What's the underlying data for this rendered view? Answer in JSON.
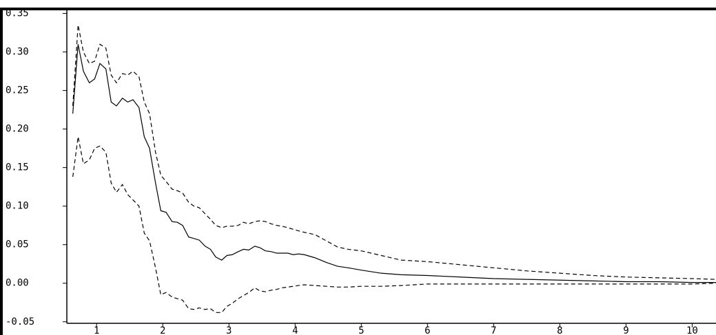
{
  "chart_data": {
    "type": "line",
    "x": [
      0.64,
      0.72,
      0.8,
      0.89,
      0.97,
      1.05,
      1.14,
      1.22,
      1.3,
      1.39,
      1.47,
      1.55,
      1.64,
      1.72,
      1.8,
      1.89,
      1.97,
      2.05,
      2.14,
      2.22,
      2.3,
      2.39,
      2.47,
      2.55,
      2.64,
      2.72,
      2.8,
      2.89,
      2.97,
      3.05,
      3.14,
      3.22,
      3.3,
      3.39,
      3.47,
      3.55,
      3.64,
      3.72,
      3.8,
      3.89,
      3.97,
      4.05,
      4.14,
      4.3,
      4.47,
      4.64,
      4.8,
      5.0,
      5.3,
      5.6,
      6.0,
      6.5,
      7.0,
      7.5,
      8.0,
      8.5,
      9.0,
      9.5,
      10.0,
      10.36
    ],
    "series": [
      {
        "color": "#000000",
        "dashed": false,
        "values": [
          0.22,
          0.31,
          0.275,
          0.26,
          0.265,
          0.285,
          0.278,
          0.235,
          0.23,
          0.24,
          0.235,
          0.238,
          0.228,
          0.19,
          0.175,
          0.13,
          0.094,
          0.092,
          0.08,
          0.079,
          0.075,
          0.06,
          0.058,
          0.056,
          0.048,
          0.044,
          0.034,
          0.03,
          0.036,
          0.037,
          0.041,
          0.044,
          0.043,
          0.048,
          0.046,
          0.042,
          0.041,
          0.039,
          0.039,
          0.039,
          0.037,
          0.038,
          0.037,
          0.033,
          0.027,
          0.022,
          0.02,
          0.017,
          0.013,
          0.011,
          0.01,
          0.008,
          0.006,
          0.005,
          0.004,
          0.003,
          0.002,
          0.002,
          0.001,
          0.001
        ]
      },
      {
        "color": "#000000",
        "dashed": true,
        "values": [
          0.23,
          0.335,
          0.3,
          0.285,
          0.288,
          0.31,
          0.305,
          0.27,
          0.26,
          0.272,
          0.27,
          0.275,
          0.268,
          0.235,
          0.22,
          0.17,
          0.14,
          0.132,
          0.122,
          0.12,
          0.117,
          0.105,
          0.1,
          0.098,
          0.09,
          0.083,
          0.075,
          0.072,
          0.074,
          0.074,
          0.075,
          0.079,
          0.077,
          0.08,
          0.081,
          0.08,
          0.077,
          0.075,
          0.074,
          0.072,
          0.07,
          0.068,
          0.066,
          0.063,
          0.055,
          0.047,
          0.044,
          0.042,
          0.036,
          0.03,
          0.028,
          0.024,
          0.02,
          0.016,
          0.013,
          0.01,
          0.008,
          0.007,
          0.006,
          0.005
        ]
      },
      {
        "color": "#000000",
        "dashed": true,
        "values": [
          0.138,
          0.19,
          0.155,
          0.16,
          0.175,
          0.178,
          0.17,
          0.13,
          0.118,
          0.128,
          0.115,
          0.108,
          0.1,
          0.065,
          0.055,
          0.02,
          -0.015,
          -0.012,
          -0.018,
          -0.02,
          -0.022,
          -0.033,
          -0.034,
          -0.032,
          -0.034,
          -0.033,
          -0.038,
          -0.038,
          -0.03,
          -0.026,
          -0.02,
          -0.016,
          -0.012,
          -0.006,
          -0.01,
          -0.011,
          -0.009,
          -0.008,
          -0.006,
          -0.005,
          -0.004,
          -0.003,
          -0.002,
          -0.003,
          -0.004,
          -0.005,
          -0.005,
          -0.004,
          -0.004,
          -0.003,
          -0.001,
          -0.001,
          -0.001,
          -0.001,
          -0.001,
          -0.001,
          -0.001,
          -0.001,
          -0.001,
          0.0
        ]
      }
    ],
    "xlim": [
      0.55,
      10.36
    ],
    "ylim": [
      -0.052,
      0.354
    ],
    "xticks": [
      1,
      2,
      3,
      4,
      5,
      6,
      7,
      8,
      9,
      10
    ],
    "yticks": [
      0.35,
      {
        "value": 0.3,
        "label": "0.30"
      },
      0.25,
      {
        "value": 0.2,
        "label": "0.20"
      },
      0.15,
      {
        "value": 0.1,
        "label": "0.10"
      },
      0.05,
      {
        "value": 0,
        "label": "0.00"
      },
      -0.05
    ]
  }
}
